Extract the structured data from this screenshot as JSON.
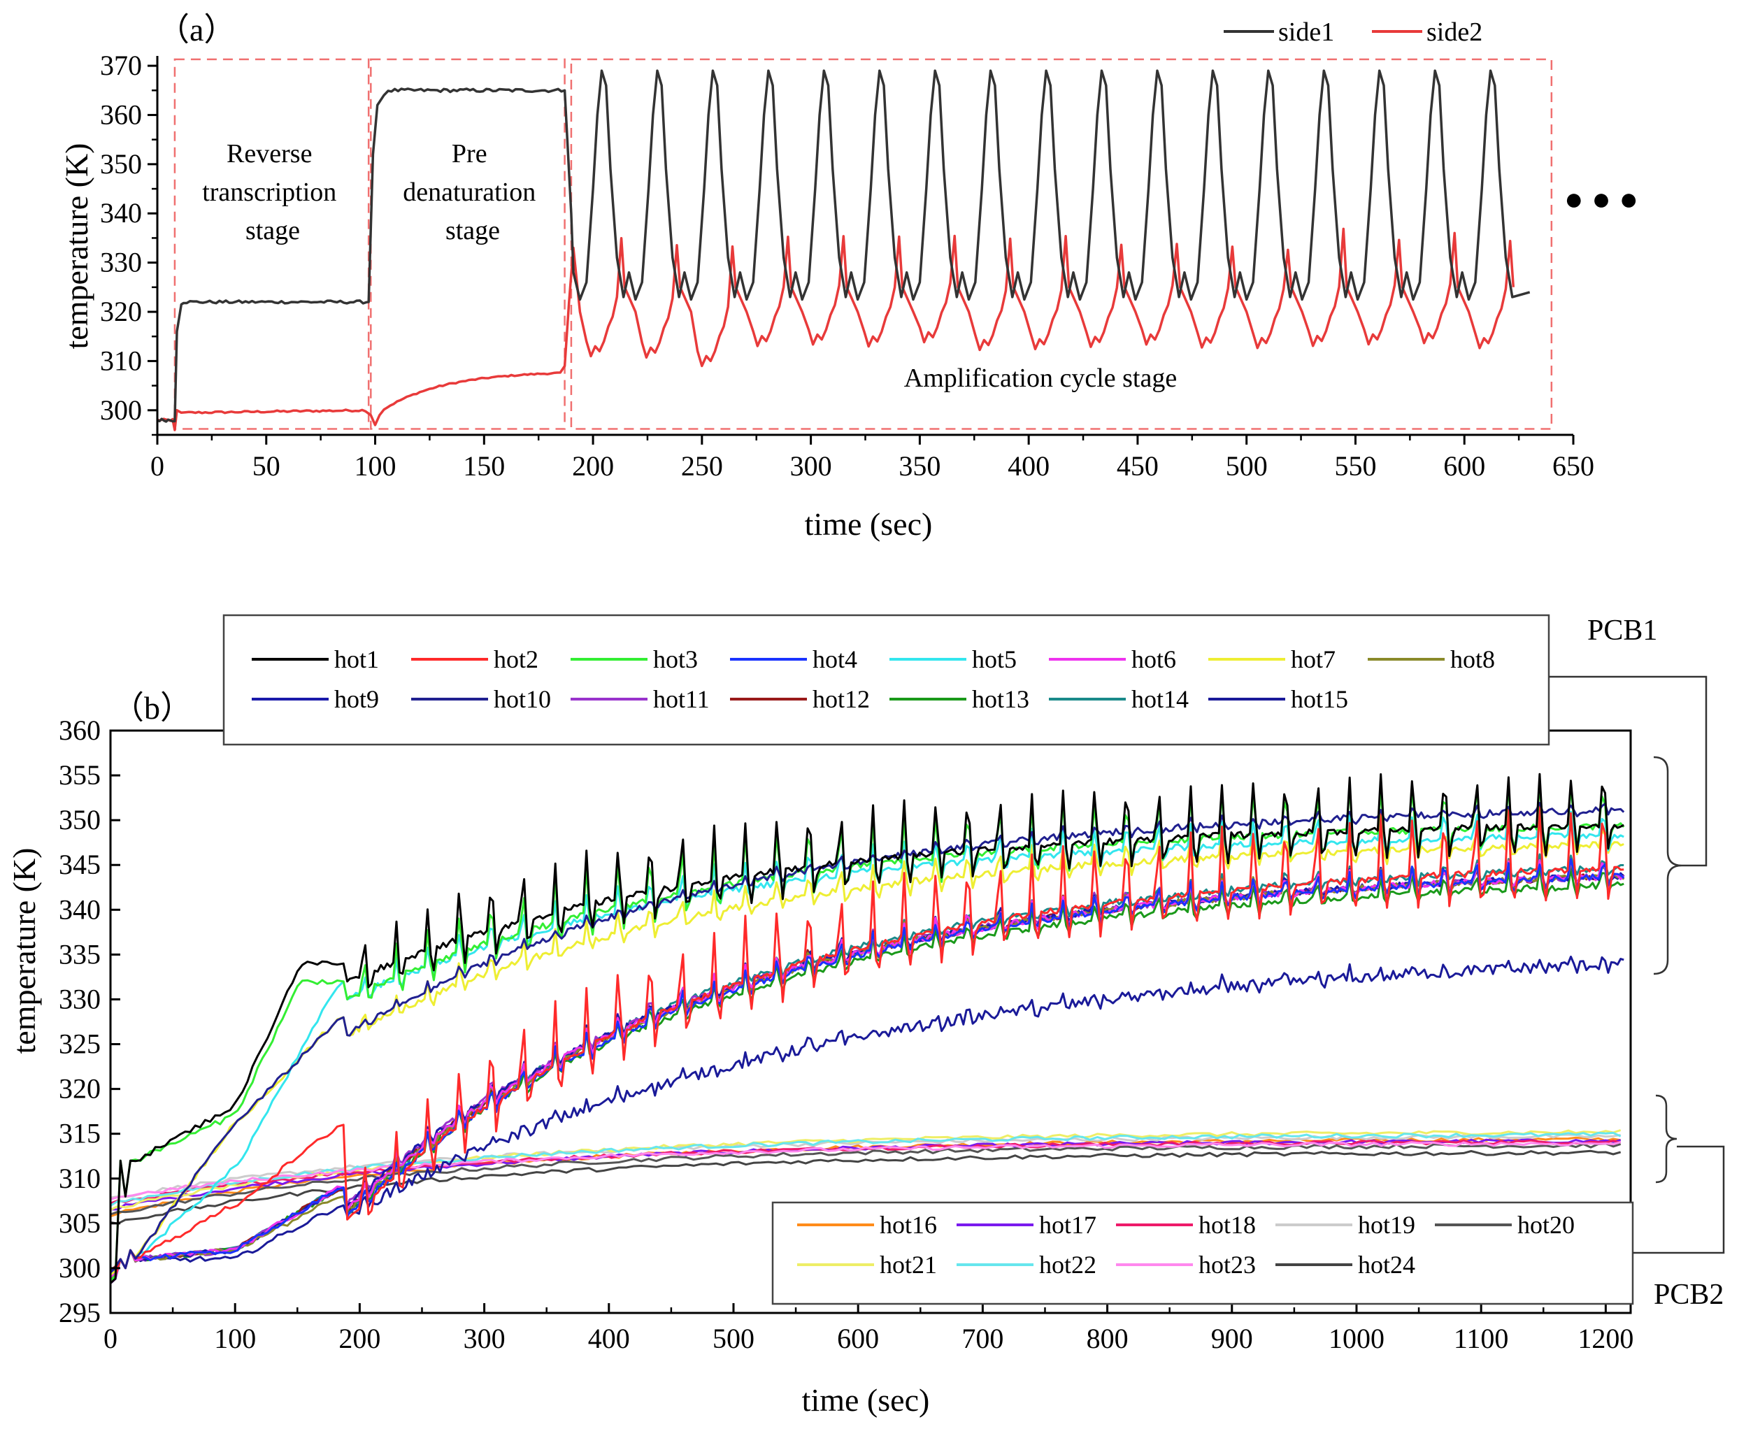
{
  "chart_data": [
    {
      "type": "line",
      "panel_label": "(a)",
      "panel_label_open": "（",
      "panel_label_letter": "a",
      "panel_label_close": "）",
      "xlabel": "time (sec)",
      "ylabel": "temperature (K)",
      "xlim": [
        0,
        650
      ],
      "ylim": [
        295,
        372
      ],
      "xticks": [
        0,
        50,
        100,
        150,
        200,
        250,
        300,
        350,
        400,
        450,
        500,
        550,
        600,
        650
      ],
      "yticks": [
        300,
        310,
        320,
        330,
        340,
        350,
        360,
        370
      ],
      "colors": {
        "side1": "#333333",
        "side2": "#e83a3a",
        "stage_box": "#f07070"
      },
      "stages": [
        {
          "name": "Reverse transcription stage",
          "lines": [
            "Reverse",
            "transcription",
            "stage"
          ],
          "x_range": [
            8,
            97
          ]
        },
        {
          "name": "Pre denaturation stage",
          "lines": [
            "Pre",
            "denaturation",
            "stage"
          ],
          "x_range": [
            98,
            187
          ]
        },
        {
          "name": "Amplification cycle stage",
          "lines": [
            "Amplification cycle stage"
          ],
          "x_range": [
            190,
            640
          ]
        }
      ],
      "continuation_marker": "●  ●  ●",
      "series": [
        {
          "name": "side1",
          "description": "ambient ~298 K, jumps to ~322 K (reverse transcription, 8-97 s), ~365 K (pre-denaturation, 98-187 s), then 17 amplification cycles oscillating 322-370 K with period ~25.5 s",
          "baseline": 298,
          "rt_plateau": 322,
          "pd_plateau": 365,
          "cycle_period": 25.5,
          "cycle_start": 190,
          "cycle_high": 369,
          "cycle_low": 322,
          "cycles": 17,
          "end_time": 630
        },
        {
          "name": "side2",
          "description": "~298 K, ~300 K during reverse transcription, rises 297-308 K during pre-denaturation, then cycles with peaks ~336-338 K and troughs ~310-316 K",
          "baseline": 298,
          "rt_plateau": 300,
          "pd_start": 297,
          "pd_end": 308,
          "cycle_high": 337,
          "cycle_low": 314,
          "end_time": 630
        }
      ]
    },
    {
      "type": "line",
      "panel_label": "(b)",
      "panel_label_open": "（",
      "panel_label_letter": "b",
      "panel_label_close": "）",
      "xlabel": "time (sec)",
      "ylabel": "temperature (K)",
      "xlim": [
        0,
        1220
      ],
      "ylim": [
        295,
        360
      ],
      "xticks": [
        0,
        100,
        200,
        300,
        400,
        500,
        600,
        700,
        800,
        900,
        1000,
        1100,
        1200
      ],
      "yticks": [
        295,
        300,
        305,
        310,
        315,
        320,
        325,
        330,
        335,
        340,
        345,
        350,
        355,
        360
      ],
      "groups": [
        {
          "label": "PCB1",
          "series_names": [
            "hot1",
            "hot2",
            "hot3",
            "hot4",
            "hot5",
            "hot6",
            "hot7",
            "hot8",
            "hot9",
            "hot10",
            "hot11",
            "hot12",
            "hot13",
            "hot14",
            "hot15"
          ]
        },
        {
          "label": "PCB2",
          "series_names": [
            "hot16",
            "hot17",
            "hot18",
            "hot19",
            "hot20",
            "hot21",
            "hot22",
            "hot23",
            "hot24"
          ]
        }
      ],
      "series": [
        {
          "name": "hot1",
          "color": "#000000",
          "final_mean": 350,
          "final_amp": 6,
          "p100": 318,
          "p180": 334
        },
        {
          "name": "hot2",
          "color": "#ff2a2a",
          "final_mean": 346,
          "final_amp": 7,
          "p100": 307,
          "p180": 316
        },
        {
          "name": "hot3",
          "color": "#33ee33",
          "final_mean": 350,
          "final_amp": 5,
          "p100": 317,
          "p180": 332
        },
        {
          "name": "hot4",
          "color": "#1a33ff",
          "final_mean": 345,
          "final_amp": 2,
          "p100": 302,
          "p180": 309
        },
        {
          "name": "hot5",
          "color": "#33e6ee",
          "final_mean": 349,
          "final_amp": 3,
          "p100": 311,
          "p180": 332
        },
        {
          "name": "hot6",
          "color": "#ee33ee",
          "final_mean": 345,
          "final_amp": 2,
          "p100": 302,
          "p180": 309
        },
        {
          "name": "hot7",
          "color": "#eeee33",
          "final_mean": 348,
          "final_amp": 2.5,
          "p100": 316,
          "p180": 328
        },
        {
          "name": "hot8",
          "color": "#8a8a2a",
          "final_mean": 345,
          "final_amp": 2,
          "p100": 302,
          "p180": 308
        },
        {
          "name": "hot9",
          "color": "#1a1aaa",
          "final_mean": 345,
          "final_amp": 2,
          "p100": 302,
          "p180": 309
        },
        {
          "name": "hot10",
          "color": "#202090",
          "final_mean": 352,
          "final_amp": 0.8,
          "p100": 316,
          "p180": 328
        },
        {
          "name": "hot11",
          "color": "#9933cc",
          "final_mean": 345,
          "final_amp": 2,
          "p100": 302,
          "p180": 309
        },
        {
          "name": "hot12",
          "color": "#991a1a",
          "final_mean": 345,
          "final_amp": 2,
          "p100": 302,
          "p180": 309
        },
        {
          "name": "hot13",
          "color": "#1a991a",
          "final_mean": 344,
          "final_amp": 2,
          "p100": 302,
          "p180": 309
        },
        {
          "name": "hot14",
          "color": "#1a8a8a",
          "final_mean": 346,
          "final_amp": 1.5,
          "p100": 302,
          "p180": 309
        },
        {
          "name": "hot15",
          "color": "#1a1a99",
          "final_mean": 336,
          "final_amp": 1,
          "p100": 301,
          "p180": 307
        },
        {
          "name": "hot16",
          "color": "#ff8c1a",
          "final_mean": 314.5
        },
        {
          "name": "hot17",
          "color": "#7a1aee",
          "final_mean": 314.3
        },
        {
          "name": "hot18",
          "color": "#ee1a6a",
          "final_mean": 314.2
        },
        {
          "name": "hot19",
          "color": "#cccccc",
          "final_mean": 314.8
        },
        {
          "name": "hot20",
          "color": "#555555",
          "final_mean": 313.8
        },
        {
          "name": "hot21",
          "color": "#eeee66",
          "final_mean": 315.3
        },
        {
          "name": "hot22",
          "color": "#66e6ee",
          "final_mean": 315.0
        },
        {
          "name": "hot23",
          "color": "#ff88ee",
          "final_mean": 314.0
        },
        {
          "name": "hot24",
          "color": "#444444",
          "final_mean": 313.0
        }
      ]
    }
  ]
}
